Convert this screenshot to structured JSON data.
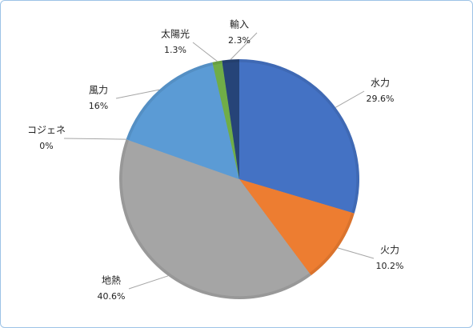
{
  "chart_data": {
    "type": "pie",
    "categories": [
      "水力",
      "火力",
      "地熱",
      "コジェネ",
      "風力",
      "太陽光",
      "輸入"
    ],
    "values": [
      29.6,
      10.2,
      40.6,
      0,
      16,
      1.3,
      2.3
    ],
    "value_labels": [
      "29.6%",
      "10.2%",
      "40.6%",
      "0%",
      "16%",
      "1.3%",
      "2.3%"
    ],
    "colors": [
      "#4472c4",
      "#ed7d31",
      "#a5a5a5",
      "#ffc000",
      "#5b9bd5",
      "#70ad47",
      "#264478"
    ]
  }
}
